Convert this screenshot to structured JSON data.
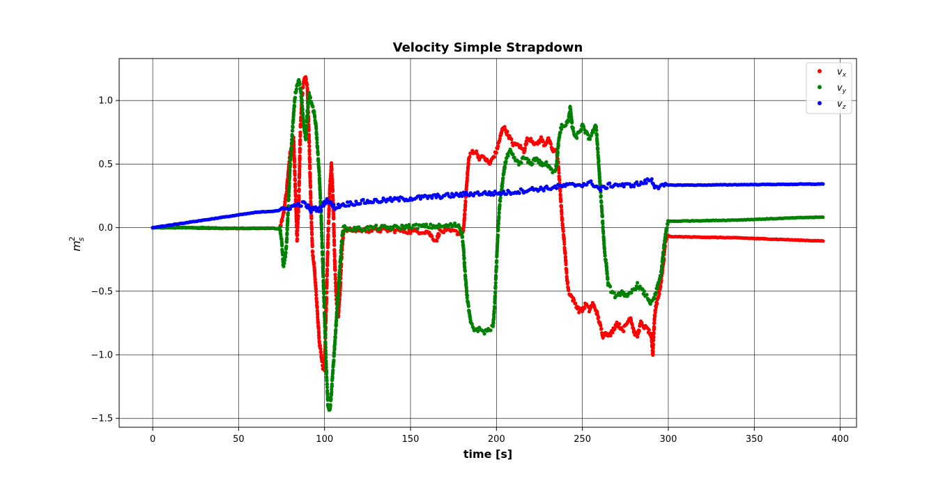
{
  "chart_data": {
    "type": "scatter",
    "title": "Velocity Simple Strapdown",
    "xlabel": "time [s]",
    "ylabel_base": "m",
    "ylabel_sup": "2",
    "ylabel_sub": "s",
    "xlim": [
      -19.5,
      409.5
    ],
    "ylim": [
      -1.57,
      1.33
    ],
    "xticks": [
      0,
      50,
      100,
      150,
      200,
      250,
      300,
      350,
      400
    ],
    "xtick_labels": [
      "0",
      "50",
      "100",
      "150",
      "200",
      "250",
      "300",
      "350",
      "400"
    ],
    "yticks": [
      1.0,
      0.5,
      0.0,
      -0.5,
      -1.0,
      -1.5
    ],
    "ytick_labels": [
      "1.0",
      "0.5",
      "0.0",
      "−0.5",
      "−1.0",
      "−1.5"
    ],
    "grid": true,
    "legend_position": "top-right",
    "series": [
      {
        "name": "v",
        "subscript": "x",
        "color": "#ff0000",
        "points": [
          [
            0,
            0
          ],
          [
            10,
            0
          ],
          [
            20,
            0
          ],
          [
            30,
            -0.005
          ],
          [
            40,
            -0.005
          ],
          [
            50,
            -0.005
          ],
          [
            60,
            -0.005
          ],
          [
            70,
            -0.005
          ],
          [
            74,
            -0.01
          ],
          [
            76,
            0.1
          ],
          [
            78,
            0.3
          ],
          [
            80,
            0.6
          ],
          [
            82,
            0.7
          ],
          [
            83,
            0.3
          ],
          [
            84,
            -0.1
          ],
          [
            85,
            0.2
          ],
          [
            86,
            0.8
          ],
          [
            87,
            1.05
          ],
          [
            88,
            1.15
          ],
          [
            89,
            1.18
          ],
          [
            90,
            1.1
          ],
          [
            91,
            0.7
          ],
          [
            92,
            0.2
          ],
          [
            93,
            -0.2
          ],
          [
            94,
            -0.3
          ],
          [
            95,
            -0.5
          ],
          [
            96,
            -0.7
          ],
          [
            97,
            -0.9
          ],
          [
            98,
            -1.0
          ],
          [
            99,
            -1.1
          ],
          [
            100,
            -1.12
          ],
          [
            101,
            -0.6
          ],
          [
            102,
            -0.1
          ],
          [
            103,
            0.3
          ],
          [
            104,
            0.5
          ],
          [
            105,
            0.2
          ],
          [
            106,
            -0.3
          ],
          [
            107,
            -0.6
          ],
          [
            108,
            -0.7
          ],
          [
            109,
            -0.5
          ],
          [
            110,
            -0.2
          ],
          [
            111,
            -0.03
          ],
          [
            113,
            -0.02
          ],
          [
            120,
            -0.02
          ],
          [
            130,
            -0.02
          ],
          [
            140,
            -0.02
          ],
          [
            150,
            -0.03
          ],
          [
            160,
            -0.03
          ],
          [
            163,
            -0.08
          ],
          [
            165,
            -0.1
          ],
          [
            167,
            -0.03
          ],
          [
            170,
            -0.03
          ],
          [
            175,
            -0.03
          ],
          [
            178,
            -0.04
          ],
          [
            180,
            -0.05
          ],
          [
            181,
            0.0
          ],
          [
            182,
            0.2
          ],
          [
            183,
            0.4
          ],
          [
            184,
            0.55
          ],
          [
            186,
            0.6
          ],
          [
            188,
            0.6
          ],
          [
            190,
            0.55
          ],
          [
            193,
            0.55
          ],
          [
            196,
            0.5
          ],
          [
            198,
            0.55
          ],
          [
            200,
            0.6
          ],
          [
            202,
            0.7
          ],
          [
            204,
            0.8
          ],
          [
            206,
            0.75
          ],
          [
            208,
            0.7
          ],
          [
            210,
            0.65
          ],
          [
            213,
            0.65
          ],
          [
            216,
            0.6
          ],
          [
            218,
            0.7
          ],
          [
            220,
            0.7
          ],
          [
            223,
            0.65
          ],
          [
            226,
            0.7
          ],
          [
            228,
            0.65
          ],
          [
            230,
            0.7
          ],
          [
            233,
            0.6
          ],
          [
            235,
            0.6
          ],
          [
            236,
            0.5
          ],
          [
            237,
            0.3
          ],
          [
            238,
            0.1
          ],
          [
            239,
            -0.05
          ],
          [
            240,
            -0.2
          ],
          [
            241,
            -0.4
          ],
          [
            242,
            -0.5
          ],
          [
            244,
            -0.55
          ],
          [
            246,
            -0.6
          ],
          [
            248,
            -0.65
          ],
          [
            250,
            -0.65
          ],
          [
            252,
            -0.6
          ],
          [
            254,
            -0.65
          ],
          [
            256,
            -0.6
          ],
          [
            258,
            -0.65
          ],
          [
            260,
            -0.75
          ],
          [
            262,
            -0.85
          ],
          [
            264,
            -0.82
          ],
          [
            266,
            -0.85
          ],
          [
            268,
            -0.8
          ],
          [
            270,
            -0.75
          ],
          [
            272,
            -0.78
          ],
          [
            274,
            -0.8
          ],
          [
            276,
            -0.75
          ],
          [
            278,
            -0.7
          ],
          [
            280,
            -0.82
          ],
          [
            282,
            -0.85
          ],
          [
            284,
            -0.75
          ],
          [
            286,
            -0.78
          ],
          [
            288,
            -0.8
          ],
          [
            290,
            -0.85
          ],
          [
            291,
            -1.0
          ],
          [
            292,
            -0.7
          ],
          [
            293,
            -0.6
          ],
          [
            294,
            -0.55
          ],
          [
            295,
            -0.5
          ],
          [
            296,
            -0.4
          ],
          [
            297,
            -0.3
          ],
          [
            298,
            -0.15
          ],
          [
            299,
            -0.08
          ],
          [
            300,
            -0.07
          ],
          [
            320,
            -0.075
          ],
          [
            340,
            -0.08
          ],
          [
            360,
            -0.09
          ],
          [
            380,
            -0.1
          ],
          [
            390,
            -0.105
          ]
        ]
      },
      {
        "name": "v",
        "subscript": "y",
        "color": "#008000",
        "points": [
          [
            0,
            0
          ],
          [
            10,
            0
          ],
          [
            20,
            0
          ],
          [
            30,
            0
          ],
          [
            40,
            -0.005
          ],
          [
            50,
            -0.005
          ],
          [
            60,
            -0.005
          ],
          [
            70,
            -0.005
          ],
          [
            74,
            -0.01
          ],
          [
            75,
            -0.1
          ],
          [
            76,
            -0.3
          ],
          [
            77,
            -0.25
          ],
          [
            78,
            -0.1
          ],
          [
            79,
            0.2
          ],
          [
            80,
            0.5
          ],
          [
            81,
            0.7
          ],
          [
            82,
            0.9
          ],
          [
            83,
            1.05
          ],
          [
            84,
            1.12
          ],
          [
            85,
            1.15
          ],
          [
            86,
            1.1
          ],
          [
            87,
            0.95
          ],
          [
            88,
            0.8
          ],
          [
            89,
            0.7
          ],
          [
            90,
            0.9
          ],
          [
            91,
            1.05
          ],
          [
            92,
            1.0
          ],
          [
            93,
            0.95
          ],
          [
            94,
            0.9
          ],
          [
            95,
            0.8
          ],
          [
            96,
            0.6
          ],
          [
            97,
            0.4
          ],
          [
            98,
            0.1
          ],
          [
            99,
            -0.3
          ],
          [
            100,
            -0.7
          ],
          [
            101,
            -1.1
          ],
          [
            102,
            -1.4
          ],
          [
            103,
            -1.45
          ],
          [
            104,
            -1.3
          ],
          [
            105,
            -1.1
          ],
          [
            106,
            -0.9
          ],
          [
            107,
            -0.7
          ],
          [
            108,
            -0.5
          ],
          [
            109,
            -0.3
          ],
          [
            110,
            -0.1
          ],
          [
            111,
            0.0
          ],
          [
            113,
            -0.01
          ],
          [
            120,
            -0.01
          ],
          [
            130,
            0.0
          ],
          [
            140,
            0.0
          ],
          [
            150,
            0.01
          ],
          [
            160,
            0.01
          ],
          [
            170,
            0.01
          ],
          [
            175,
            0.02
          ],
          [
            178,
            0.02
          ],
          [
            180,
            -0.05
          ],
          [
            181,
            -0.2
          ],
          [
            182,
            -0.4
          ],
          [
            183,
            -0.55
          ],
          [
            184,
            -0.65
          ],
          [
            185,
            -0.75
          ],
          [
            187,
            -0.8
          ],
          [
            190,
            -0.8
          ],
          [
            193,
            -0.82
          ],
          [
            196,
            -0.8
          ],
          [
            198,
            -0.78
          ],
          [
            199,
            -0.6
          ],
          [
            200,
            -0.3
          ],
          [
            201,
            0.0
          ],
          [
            202,
            0.2
          ],
          [
            203,
            0.3
          ],
          [
            204,
            0.4
          ],
          [
            205,
            0.5
          ],
          [
            206,
            0.55
          ],
          [
            208,
            0.6
          ],
          [
            210,
            0.55
          ],
          [
            213,
            0.5
          ],
          [
            216,
            0.55
          ],
          [
            220,
            0.5
          ],
          [
            223,
            0.55
          ],
          [
            226,
            0.5
          ],
          [
            229,
            0.5
          ],
          [
            232,
            0.45
          ],
          [
            234,
            0.45
          ],
          [
            235,
            0.5
          ],
          [
            236,
            0.65
          ],
          [
            237,
            0.75
          ],
          [
            238,
            0.8
          ],
          [
            240,
            0.8
          ],
          [
            242,
            0.85
          ],
          [
            243,
            0.95
          ],
          [
            244,
            0.8
          ],
          [
            246,
            0.7
          ],
          [
            248,
            0.75
          ],
          [
            250,
            0.8
          ],
          [
            252,
            0.75
          ],
          [
            254,
            0.7
          ],
          [
            256,
            0.75
          ],
          [
            258,
            0.8
          ],
          [
            259,
            0.6
          ],
          [
            260,
            0.4
          ],
          [
            261,
            0.2
          ],
          [
            262,
            0.0
          ],
          [
            263,
            -0.2
          ],
          [
            264,
            -0.3
          ],
          [
            265,
            -0.45
          ],
          [
            267,
            -0.5
          ],
          [
            270,
            -0.55
          ],
          [
            273,
            -0.5
          ],
          [
            276,
            -0.55
          ],
          [
            279,
            -0.5
          ],
          [
            282,
            -0.45
          ],
          [
            285,
            -0.5
          ],
          [
            288,
            -0.55
          ],
          [
            290,
            -0.6
          ],
          [
            292,
            -0.55
          ],
          [
            294,
            -0.45
          ],
          [
            296,
            -0.35
          ],
          [
            297,
            -0.2
          ],
          [
            298,
            -0.1
          ],
          [
            299,
            0.0
          ],
          [
            300,
            0.05
          ],
          [
            320,
            0.055
          ],
          [
            340,
            0.06
          ],
          [
            360,
            0.07
          ],
          [
            380,
            0.08
          ],
          [
            390,
            0.082
          ]
        ]
      },
      {
        "name": "v",
        "subscript": "z",
        "color": "#0000ff",
        "points": [
          [
            0,
            0
          ],
          [
            10,
            0.02
          ],
          [
            20,
            0.04
          ],
          [
            30,
            0.06
          ],
          [
            40,
            0.08
          ],
          [
            50,
            0.1
          ],
          [
            60,
            0.12
          ],
          [
            70,
            0.13
          ],
          [
            76,
            0.14
          ],
          [
            80,
            0.16
          ],
          [
            84,
            0.18
          ],
          [
            88,
            0.19
          ],
          [
            90,
            0.17
          ],
          [
            92,
            0.13
          ],
          [
            94,
            0.16
          ],
          [
            96,
            0.14
          ],
          [
            98,
            0.15
          ],
          [
            100,
            0.2
          ],
          [
            102,
            0.22
          ],
          [
            104,
            0.18
          ],
          [
            106,
            0.16
          ],
          [
            108,
            0.17
          ],
          [
            110,
            0.18
          ],
          [
            115,
            0.19
          ],
          [
            120,
            0.2
          ],
          [
            130,
            0.21
          ],
          [
            140,
            0.22
          ],
          [
            150,
            0.23
          ],
          [
            160,
            0.24
          ],
          [
            170,
            0.25
          ],
          [
            180,
            0.26
          ],
          [
            190,
            0.27
          ],
          [
            200,
            0.27
          ],
          [
            210,
            0.28
          ],
          [
            220,
            0.3
          ],
          [
            230,
            0.31
          ],
          [
            240,
            0.33
          ],
          [
            250,
            0.34
          ],
          [
            255,
            0.35
          ],
          [
            258,
            0.33
          ],
          [
            260,
            0.3
          ],
          [
            262,
            0.31
          ],
          [
            265,
            0.33
          ],
          [
            270,
            0.34
          ],
          [
            275,
            0.33
          ],
          [
            280,
            0.34
          ],
          [
            285,
            0.35
          ],
          [
            290,
            0.38
          ],
          [
            292,
            0.33
          ],
          [
            295,
            0.32
          ],
          [
            300,
            0.335
          ],
          [
            320,
            0.335
          ],
          [
            340,
            0.338
          ],
          [
            360,
            0.34
          ],
          [
            380,
            0.342
          ],
          [
            390,
            0.343
          ]
        ]
      }
    ]
  }
}
